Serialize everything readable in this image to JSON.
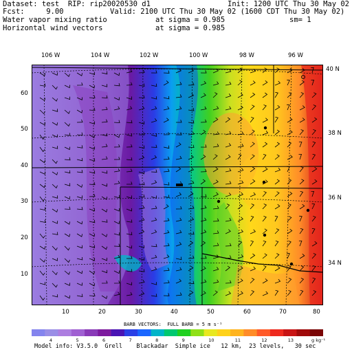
{
  "header": {
    "dataset": "Dataset: test  RIP: rip20020530 d1",
    "init": "Init: 1200 UTC Thu 30 May 02",
    "fcst": "Fcst:     9.00",
    "valid": "Valid: 2100 UTC Thu 30 May 02 (1600 CDT Thu 30 May 02)",
    "field1": "Water vapor mixing ratio",
    "sigma1": "at sigma = 0.985",
    "sm": "sm= 1",
    "field2": "Horizontal wind vectors",
    "sigma2": "at sigma = 0.985"
  },
  "map": {
    "top_longitudes": [
      "106 W",
      "104 W",
      "102 W",
      "100 W",
      "98 W",
      "96 W"
    ],
    "right_latitudes": [
      "40 N",
      "38 N",
      "36 N",
      "34 N"
    ],
    "y_ticks": [
      "10",
      "20",
      "30",
      "40",
      "50",
      "60"
    ],
    "x_ticks": [
      "10",
      "20",
      "30",
      "40",
      "50",
      "60",
      "70",
      "80"
    ]
  },
  "barb_note": "BARB VECTORS:  FULL BARB = 5 m s⁻¹",
  "colorbar": {
    "labels": [
      "4",
      "5",
      "6",
      "7",
      "8",
      "9",
      "10",
      "11",
      "12",
      "13",
      "g kg⁻¹"
    ],
    "colors": [
      "#8484ee",
      "#9a8ee6",
      "#ad7ee0",
      "#a060d2",
      "#8a3ab8",
      "#7d1a9e",
      "#4a14b4",
      "#2a40e6",
      "#1a66ff",
      "#00b4c8",
      "#00c870",
      "#20d020",
      "#90e018",
      "#e8e820",
      "#ffd21a",
      "#ffb41e",
      "#ff8c28",
      "#ff5a28",
      "#ee2a1e",
      "#c81414",
      "#a00a0a",
      "#7a0505"
    ]
  },
  "footer": "Model info: V3.5.0  Grell    Blackadar  Simple ice   12 km,  23 levels,   30 sec"
}
